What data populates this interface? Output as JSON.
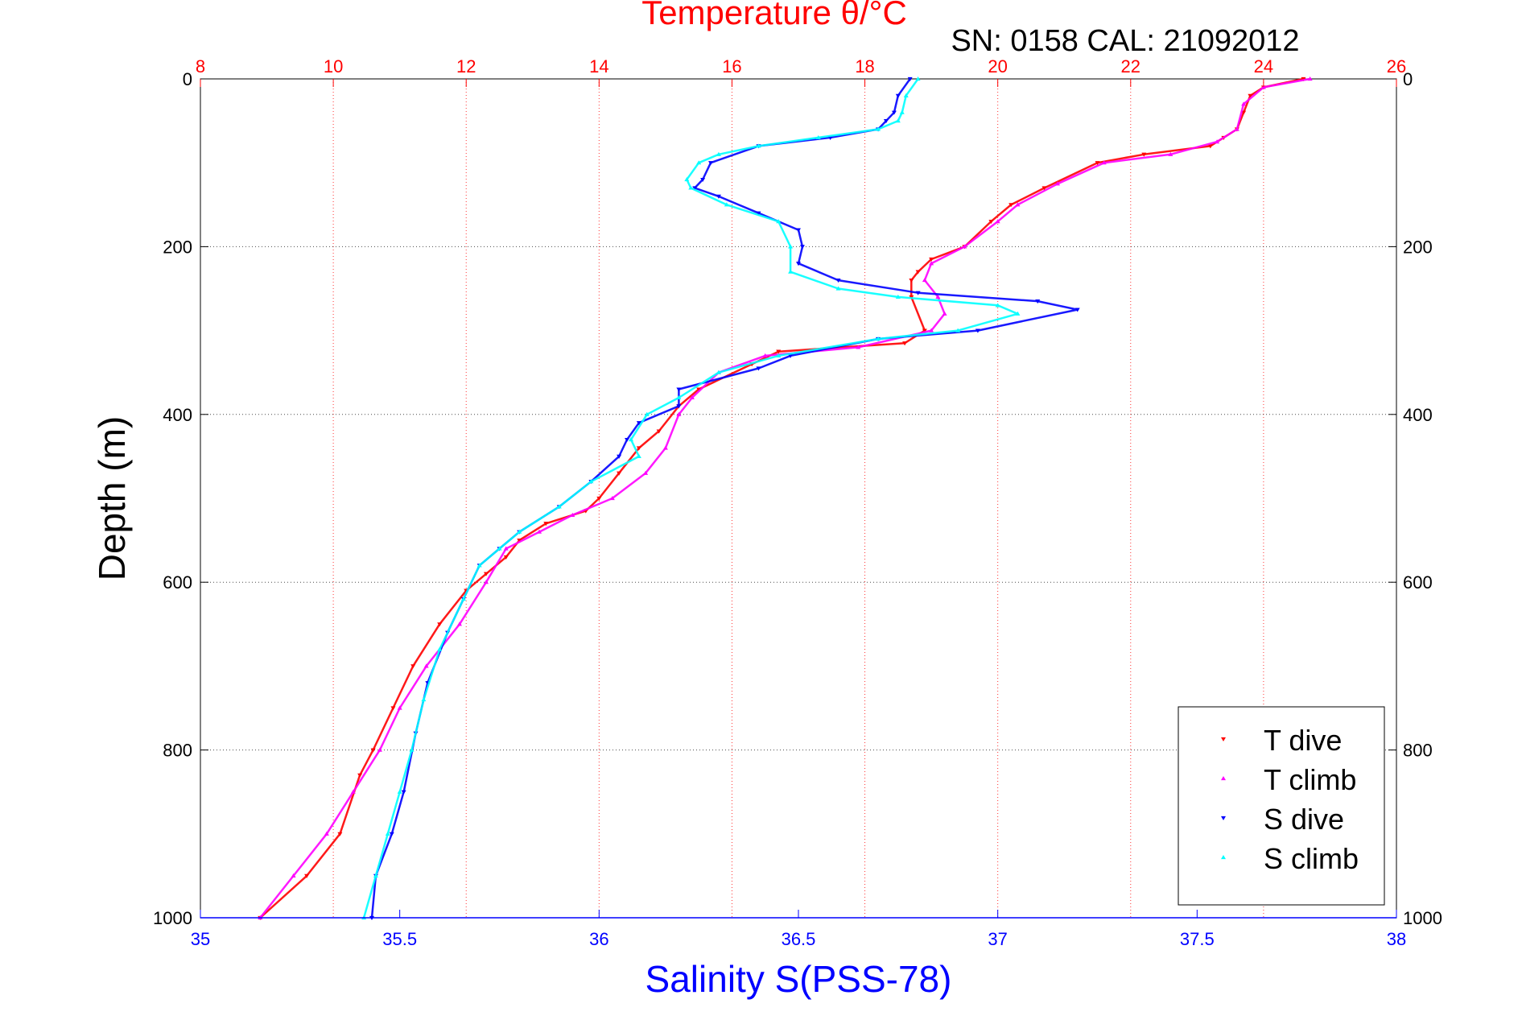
{
  "chart_data": {
    "type": "scatter",
    "title": "Temperature θ/°C",
    "subtitle": "SN: 0158  CAL: 21092012",
    "top_axis": {
      "label": "Temperature θ/°C",
      "range": [
        8,
        26
      ],
      "ticks": [
        "8",
        "10",
        "12",
        "14",
        "16",
        "18",
        "20",
        "22",
        "24",
        "26"
      ],
      "color": "#ff0000",
      "grid": true
    },
    "bottom_axis": {
      "label": "Salinity S(PSS-78)",
      "range": [
        35,
        38
      ],
      "ticks": [
        "35",
        "35.5",
        "36",
        "36.5",
        "37",
        "37.5",
        "38"
      ],
      "color": "#0000ff"
    },
    "y_axis": {
      "label": "Depth (m)",
      "range": [
        0,
        1000
      ],
      "inverted": true,
      "ticks": [
        "0",
        "200",
        "400",
        "600",
        "800",
        "1000"
      ],
      "grid": true
    },
    "legend": {
      "placement": "bottom-right",
      "entries": [
        {
          "label": "T dive",
          "color": "#ff0000",
          "marker": "triangle-down"
        },
        {
          "label": "T climb",
          "color": "#ff00ff",
          "marker": "triangle-up"
        },
        {
          "label": "S dive",
          "color": "#0000ff",
          "marker": "triangle-down"
        },
        {
          "label": "S climb",
          "color": "#00ffff",
          "marker": "triangle-up"
        }
      ]
    },
    "series": [
      {
        "name": "T dive",
        "axis": "top",
        "color": "#ff0000",
        "marker": "triangle-down",
        "points": [
          [
            24.6,
            0
          ],
          [
            24.0,
            10
          ],
          [
            23.8,
            20
          ],
          [
            23.7,
            40
          ],
          [
            23.6,
            60
          ],
          [
            23.4,
            70
          ],
          [
            23.2,
            80
          ],
          [
            22.2,
            90
          ],
          [
            21.5,
            100
          ],
          [
            20.7,
            130
          ],
          [
            20.2,
            150
          ],
          [
            19.9,
            170
          ],
          [
            19.5,
            200
          ],
          [
            19.0,
            215
          ],
          [
            18.8,
            230
          ],
          [
            18.7,
            240
          ],
          [
            18.7,
            260
          ],
          [
            18.9,
            300
          ],
          [
            18.6,
            315
          ],
          [
            16.7,
            325
          ],
          [
            16.3,
            340
          ],
          [
            15.5,
            370
          ],
          [
            15.2,
            390
          ],
          [
            14.9,
            420
          ],
          [
            14.6,
            440
          ],
          [
            14.3,
            470
          ],
          [
            14.0,
            500
          ],
          [
            13.8,
            515
          ],
          [
            13.2,
            530
          ],
          [
            12.8,
            550
          ],
          [
            12.6,
            570
          ],
          [
            12.3,
            590
          ],
          [
            12.0,
            610
          ],
          [
            11.6,
            650
          ],
          [
            11.2,
            700
          ],
          [
            10.9,
            750
          ],
          [
            10.6,
            800
          ],
          [
            10.4,
            830
          ],
          [
            10.1,
            900
          ],
          [
            9.6,
            950
          ],
          [
            8.9,
            1000
          ]
        ]
      },
      {
        "name": "T climb",
        "axis": "top",
        "color": "#ff00ff",
        "marker": "triangle-up",
        "points": [
          [
            24.7,
            0
          ],
          [
            24.0,
            10
          ],
          [
            23.7,
            30
          ],
          [
            23.6,
            60
          ],
          [
            23.3,
            75
          ],
          [
            22.6,
            90
          ],
          [
            21.6,
            100
          ],
          [
            20.9,
            125
          ],
          [
            20.3,
            150
          ],
          [
            20.0,
            170
          ],
          [
            19.5,
            200
          ],
          [
            19.0,
            220
          ],
          [
            18.9,
            240
          ],
          [
            19.1,
            260
          ],
          [
            19.2,
            280
          ],
          [
            19.0,
            300
          ],
          [
            17.9,
            320
          ],
          [
            16.5,
            330
          ],
          [
            15.8,
            350
          ],
          [
            15.4,
            380
          ],
          [
            15.2,
            400
          ],
          [
            15.0,
            440
          ],
          [
            14.7,
            470
          ],
          [
            14.2,
            500
          ],
          [
            13.6,
            520
          ],
          [
            13.1,
            540
          ],
          [
            12.6,
            560
          ],
          [
            12.3,
            600
          ],
          [
            11.9,
            650
          ],
          [
            11.4,
            700
          ],
          [
            11.0,
            750
          ],
          [
            10.7,
            800
          ],
          [
            10.3,
            850
          ],
          [
            9.9,
            900
          ],
          [
            9.4,
            950
          ],
          [
            8.9,
            1000
          ]
        ]
      },
      {
        "name": "S dive",
        "axis": "bottom",
        "color": "#0000ff",
        "marker": "triangle-down",
        "points": [
          [
            36.78,
            0
          ],
          [
            36.75,
            20
          ],
          [
            36.74,
            40
          ],
          [
            36.72,
            50
          ],
          [
            36.7,
            60
          ],
          [
            36.58,
            70
          ],
          [
            36.4,
            80
          ],
          [
            36.28,
            100
          ],
          [
            36.26,
            120
          ],
          [
            36.24,
            130
          ],
          [
            36.3,
            140
          ],
          [
            36.4,
            160
          ],
          [
            36.5,
            180
          ],
          [
            36.51,
            200
          ],
          [
            36.5,
            220
          ],
          [
            36.6,
            240
          ],
          [
            36.8,
            255
          ],
          [
            37.1,
            265
          ],
          [
            37.2,
            275
          ],
          [
            36.95,
            300
          ],
          [
            36.7,
            310
          ],
          [
            36.48,
            330
          ],
          [
            36.4,
            345
          ],
          [
            36.2,
            370
          ],
          [
            36.2,
            390
          ],
          [
            36.1,
            410
          ],
          [
            36.07,
            430
          ],
          [
            36.05,
            450
          ],
          [
            35.98,
            480
          ],
          [
            35.9,
            510
          ],
          [
            35.8,
            540
          ],
          [
            35.75,
            560
          ],
          [
            35.7,
            580
          ],
          [
            35.66,
            620
          ],
          [
            35.62,
            660
          ],
          [
            35.57,
            720
          ],
          [
            35.54,
            780
          ],
          [
            35.51,
            850
          ],
          [
            35.48,
            900
          ],
          [
            35.44,
            950
          ],
          [
            35.43,
            1000
          ]
        ]
      },
      {
        "name": "S climb",
        "axis": "bottom",
        "color": "#00ffff",
        "marker": "triangle-up",
        "points": [
          [
            36.8,
            0
          ],
          [
            36.77,
            20
          ],
          [
            36.76,
            40
          ],
          [
            36.75,
            50
          ],
          [
            36.7,
            60
          ],
          [
            36.55,
            70
          ],
          [
            36.4,
            80
          ],
          [
            36.3,
            90
          ],
          [
            36.25,
            100
          ],
          [
            36.22,
            120
          ],
          [
            36.23,
            130
          ],
          [
            36.32,
            150
          ],
          [
            36.45,
            170
          ],
          [
            36.48,
            200
          ],
          [
            36.48,
            230
          ],
          [
            36.6,
            250
          ],
          [
            36.75,
            260
          ],
          [
            37.0,
            270
          ],
          [
            37.05,
            280
          ],
          [
            36.9,
            300
          ],
          [
            36.7,
            310
          ],
          [
            36.45,
            330
          ],
          [
            36.3,
            350
          ],
          [
            36.2,
            380
          ],
          [
            36.12,
            400
          ],
          [
            36.08,
            430
          ],
          [
            36.1,
            450
          ],
          [
            35.98,
            480
          ],
          [
            35.9,
            510
          ],
          [
            35.8,
            540
          ],
          [
            35.75,
            560
          ],
          [
            35.7,
            580
          ],
          [
            35.66,
            620
          ],
          [
            35.6,
            680
          ],
          [
            35.56,
            740
          ],
          [
            35.53,
            800
          ],
          [
            35.5,
            850
          ],
          [
            35.47,
            900
          ],
          [
            35.44,
            950
          ],
          [
            35.41,
            1000
          ]
        ]
      }
    ]
  }
}
